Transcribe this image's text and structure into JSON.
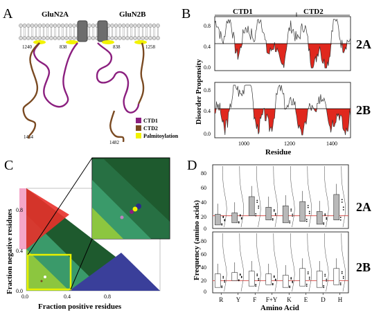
{
  "panel_a": {
    "letter": "A",
    "subunit_labels": [
      "GluN2A",
      "GluN2B"
    ],
    "residue_markers": [
      "1240",
      "838",
      "838",
      "1258",
      "1464",
      "1482"
    ],
    "legend": [
      {
        "label": "CTD1",
        "color": "#8b1f7f"
      },
      {
        "label": "CTD2",
        "color": "#7a4a22"
      },
      {
        "label": "Palmitoylation",
        "color": "#f2f200"
      }
    ]
  },
  "panel_b": {
    "letter": "B",
    "ctd_labels": [
      "CTD1",
      "CTD2"
    ],
    "ylabel": "Disorder Propensity",
    "xlabel": "Residue",
    "yticks": [
      "0.8",
      "0.4",
      "0.0"
    ],
    "xticks": [
      "1000",
      "1200",
      "1400"
    ],
    "threshold": 0.5,
    "rows": [
      "2A",
      "2B"
    ]
  },
  "panel_c": {
    "letter": "C",
    "ylabel": "Fraction negative residues",
    "xlabel": "Fraction positive residues",
    "yticks": [
      "0.8",
      "0.4",
      "0.0"
    ],
    "xticks": [
      "0.0",
      "0.4",
      "0.8"
    ]
  },
  "panel_d": {
    "letter": "D",
    "ylabel": "Frequency (amino acids)",
    "xlabel": "Amino Acid",
    "yticks": [
      "80",
      "60",
      "40",
      "20",
      "0"
    ],
    "categories": [
      "R",
      "Y",
      "F",
      "F+Y",
      "K",
      "E",
      "D",
      "H"
    ],
    "rows": [
      "2A",
      "2B"
    ],
    "reference_line": 18
  },
  "colors": {
    "ctd1": "#8b1f7f",
    "ctd2": "#7a4a22",
    "palm": "#f2f200",
    "disorder_fill": "#e0281e",
    "das_dark": "#1e5a2e",
    "das_mid": "#3a9a6a",
    "das_light": "#8cc63f",
    "das_red": "#e8302a",
    "das_pink": "#f4a6c8",
    "das_blue": "#3a3f9a",
    "box_gray": "#b9b9b9",
    "ref_line": "#d9534f"
  }
}
